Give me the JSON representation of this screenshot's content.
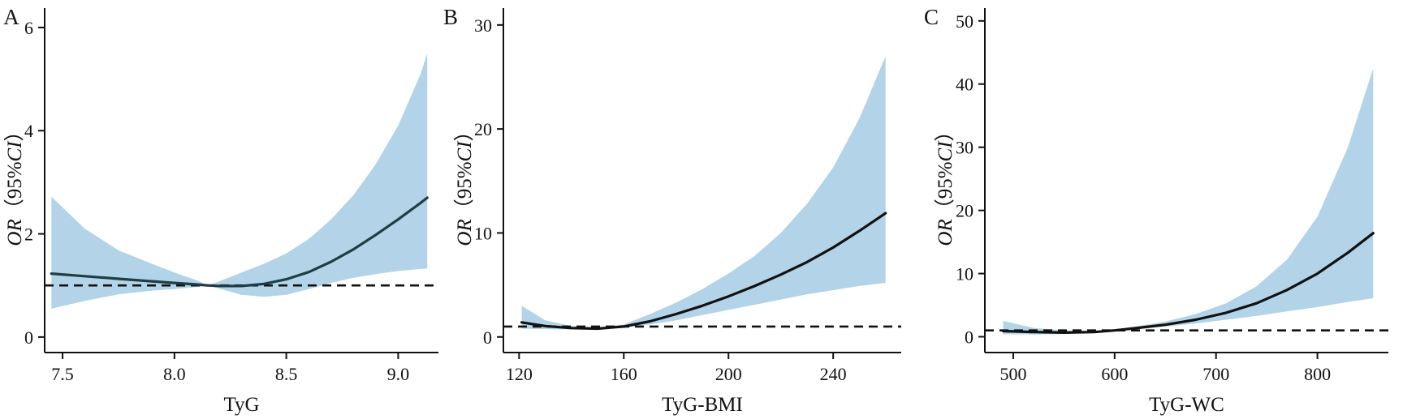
{
  "chart_data": [
    {
      "type": "line",
      "panel_label": "A",
      "xlabel": "TyG",
      "ylabel": {
        "italic_prefix": "OR",
        "open": "（95%",
        "italic_ci": "CI",
        "close": "）"
      },
      "xlim": [
        7.42,
        9.18
      ],
      "ylim": [
        -0.3,
        6.25
      ],
      "xticks": [
        7.5,
        8.0,
        8.5,
        9.0
      ],
      "xtick_labels": [
        "7.5",
        "8.0",
        "8.5",
        "9.0"
      ],
      "yticks": [
        0,
        2,
        4,
        6
      ],
      "ytick_labels": [
        "0",
        "2",
        "4",
        "6"
      ],
      "reference_line": 1,
      "colors": {
        "line": "#1f3d44",
        "band": "#b3d4e8",
        "reference": "#111111"
      },
      "series": [
        {
          "x": [
            7.45,
            7.6,
            7.75,
            7.9,
            8.0,
            8.1,
            8.15,
            8.2,
            8.3,
            8.4,
            8.5,
            8.6,
            8.7,
            8.8,
            8.9,
            9.0,
            9.1,
            9.13
          ],
          "y": [
            1.23,
            1.18,
            1.13,
            1.08,
            1.05,
            1.02,
            1.0,
            0.99,
            0.99,
            1.03,
            1.12,
            1.26,
            1.46,
            1.7,
            1.98,
            2.28,
            2.6,
            2.7
          ],
          "lower": [
            0.55,
            0.7,
            0.83,
            0.9,
            0.93,
            0.97,
            1.0,
            0.94,
            0.82,
            0.78,
            0.82,
            0.93,
            1.05,
            1.15,
            1.22,
            1.28,
            1.32,
            1.33
          ],
          "upper": [
            2.72,
            2.1,
            1.68,
            1.42,
            1.25,
            1.1,
            1.0,
            1.08,
            1.25,
            1.42,
            1.62,
            1.9,
            2.28,
            2.75,
            3.35,
            4.1,
            5.1,
            5.5
          ]
        }
      ]
    },
    {
      "type": "line",
      "panel_label": "B",
      "xlabel": "TyG-BMI",
      "ylabel": {
        "italic_prefix": "OR",
        "open": "（95%",
        "italic_ci": "CI",
        "close": "）"
      },
      "xlim": [
        114,
        266
      ],
      "ylim": [
        -1.5,
        31
      ],
      "xticks": [
        120,
        160,
        200,
        240
      ],
      "xtick_labels": [
        "120",
        "160",
        "200",
        "240"
      ],
      "yticks": [
        0,
        10,
        20,
        30
      ],
      "ytick_labels": [
        "0",
        "10",
        "20",
        "30"
      ],
      "reference_line": 1,
      "colors": {
        "line": "#111111",
        "band": "#b3d4e8",
        "reference": "#111111"
      },
      "series": [
        {
          "x": [
            121,
            130,
            140,
            150,
            160,
            170,
            180,
            190,
            200,
            210,
            220,
            230,
            240,
            250,
            260
          ],
          "y": [
            1.4,
            1.05,
            0.85,
            0.8,
            1.0,
            1.5,
            2.2,
            3.0,
            3.9,
            4.9,
            6.0,
            7.2,
            8.6,
            10.2,
            11.9
          ],
          "lower": [
            0.8,
            0.75,
            0.72,
            0.72,
            0.9,
            1.2,
            1.6,
            2.1,
            2.6,
            3.1,
            3.6,
            4.1,
            4.5,
            4.9,
            5.2
          ],
          "upper": [
            3.0,
            1.6,
            1.05,
            0.9,
            1.2,
            2.2,
            3.3,
            4.6,
            6.1,
            7.8,
            10.0,
            12.8,
            16.3,
            21.0,
            27.0
          ]
        }
      ]
    },
    {
      "type": "line",
      "panel_label": "C",
      "xlabel": "TyG-WC",
      "ylabel": {
        "italic_prefix": "OR",
        "open": "（95%",
        "italic_ci": "CI",
        "close": "）"
      },
      "xlim": [
        472,
        870
      ],
      "ylim": [
        -2.5,
        51
      ],
      "xticks": [
        500,
        600,
        700,
        800
      ],
      "xtick_labels": [
        "500",
        "600",
        "700",
        "800"
      ],
      "yticks": [
        0,
        10,
        20,
        30,
        40,
        50
      ],
      "ytick_labels": [
        "0",
        "10",
        "20",
        "30",
        "40",
        "50"
      ],
      "reference_line": 1,
      "colors": {
        "line": "#111111",
        "band": "#b3d4e8",
        "reference": "#111111"
      },
      "series": [
        {
          "x": [
            490,
            520,
            550,
            580,
            600,
            620,
            650,
            680,
            710,
            740,
            770,
            800,
            830,
            855
          ],
          "y": [
            0.9,
            0.75,
            0.65,
            0.75,
            1.0,
            1.35,
            1.9,
            2.7,
            3.8,
            5.3,
            7.4,
            10.0,
            13.3,
            16.4
          ],
          "lower": [
            0.4,
            0.35,
            0.45,
            0.65,
            0.95,
            1.2,
            1.6,
            2.1,
            2.7,
            3.3,
            4.0,
            4.7,
            5.5,
            6.1
          ],
          "upper": [
            2.5,
            1.4,
            1.0,
            0.9,
            1.1,
            1.6,
            2.4,
            3.6,
            5.3,
            8.0,
            12.2,
            19.0,
            30.0,
            42.5
          ]
        }
      ]
    }
  ]
}
